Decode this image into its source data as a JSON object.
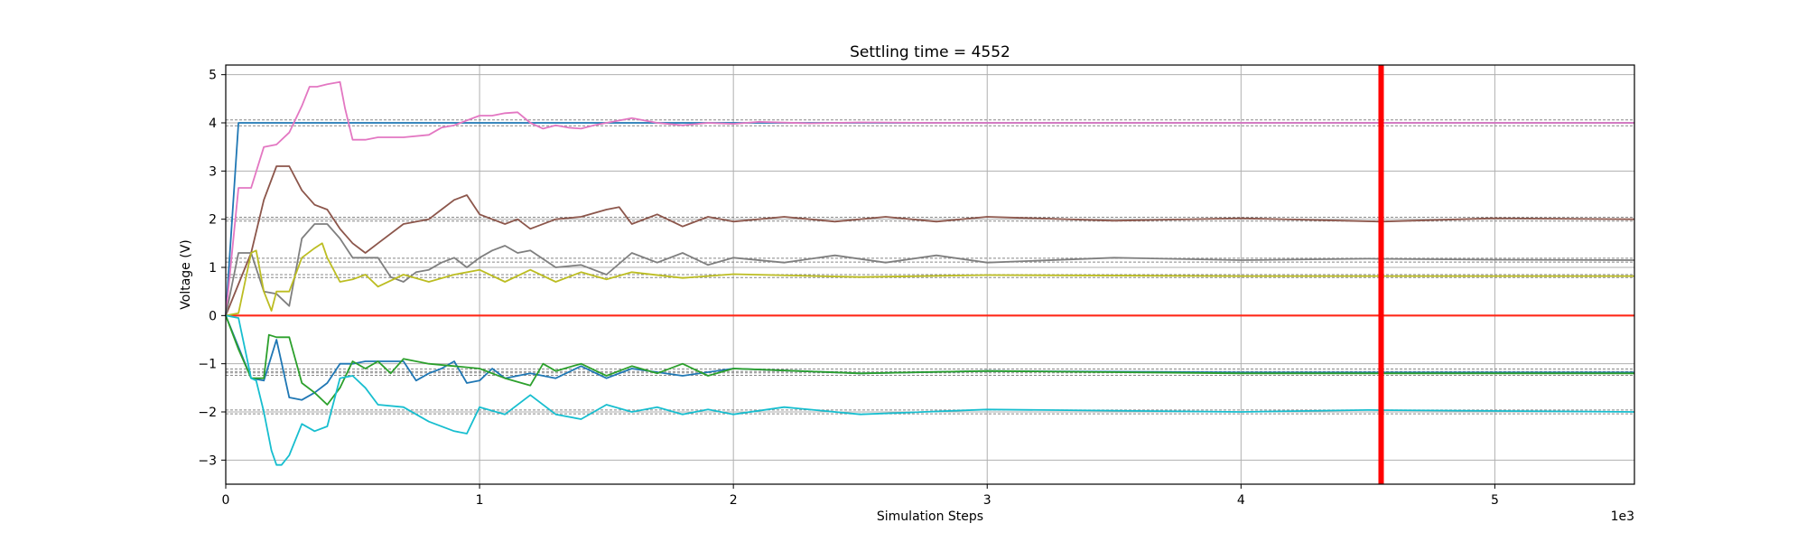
{
  "chart_data": {
    "type": "line",
    "title": "Settling time = 4552",
    "xlabel": "Simulation Steps",
    "ylabel": "Voltage (V)",
    "x_offset_text": "1e3",
    "xlim": [
      0,
      5.55
    ],
    "ylim": [
      -3.5,
      5.2
    ],
    "xticks": [
      0,
      1,
      2,
      3,
      4,
      5
    ],
    "yticks": [
      -3,
      -2,
      -1,
      0,
      1,
      2,
      3,
      4,
      5
    ],
    "grid": true,
    "settling_time": 4.552,
    "zero_line": 0,
    "targets": [
      {
        "value": 4.0,
        "tolerance": 0.06
      },
      {
        "value": 2.0,
        "tolerance": 0.04
      },
      {
        "value": 1.15,
        "tolerance": 0.04
      },
      {
        "value": 0.82,
        "tolerance": 0.03
      },
      {
        "value": -1.15,
        "tolerance": 0.04
      },
      {
        "value": -1.2,
        "tolerance": 0.04
      },
      {
        "value": -2.0,
        "tolerance": 0.04
      }
    ],
    "series": [
      {
        "color": "#1f77b4",
        "x": [
          0,
          0.05,
          5.55
        ],
        "y": [
          0,
          4.0,
          4.0
        ]
      },
      {
        "color": "#e377c2",
        "x": [
          0,
          0.05,
          0.1,
          0.15,
          0.2,
          0.25,
          0.3,
          0.33,
          0.36,
          0.4,
          0.45,
          0.47,
          0.5,
          0.55,
          0.6,
          0.7,
          0.8,
          0.85,
          0.9,
          0.95,
          1.0,
          1.05,
          1.1,
          1.15,
          1.2,
          1.25,
          1.3,
          1.35,
          1.4,
          1.45,
          1.5,
          1.6,
          1.7,
          1.8,
          1.9,
          2.0,
          2.1,
          2.3,
          2.5,
          2.8,
          3.0,
          5.55
        ],
        "y": [
          0,
          2.65,
          2.65,
          3.5,
          3.55,
          3.8,
          4.35,
          4.75,
          4.75,
          4.8,
          4.85,
          4.3,
          3.65,
          3.65,
          3.7,
          3.7,
          3.75,
          3.9,
          3.95,
          4.05,
          4.15,
          4.15,
          4.2,
          4.22,
          4.0,
          3.88,
          3.95,
          3.9,
          3.88,
          3.95,
          4.0,
          4.1,
          4.0,
          3.95,
          4.0,
          3.98,
          4.02,
          3.99,
          4.01,
          4.0,
          4.0,
          4.0
        ]
      },
      {
        "color": "#8c564b",
        "x": [
          0,
          0.1,
          0.15,
          0.2,
          0.25,
          0.3,
          0.35,
          0.4,
          0.45,
          0.5,
          0.55,
          0.6,
          0.7,
          0.8,
          0.85,
          0.9,
          0.95,
          1.0,
          1.05,
          1.1,
          1.15,
          1.2,
          1.3,
          1.4,
          1.5,
          1.55,
          1.6,
          1.7,
          1.8,
          1.9,
          2.0,
          2.2,
          2.4,
          2.6,
          2.8,
          3.0,
          3.5,
          4.0,
          4.55,
          5.0,
          5.55
        ],
        "y": [
          0,
          1.3,
          2.4,
          3.1,
          3.1,
          2.6,
          2.3,
          2.2,
          1.8,
          1.5,
          1.3,
          1.5,
          1.9,
          2.0,
          2.2,
          2.4,
          2.5,
          2.1,
          2.0,
          1.9,
          2.0,
          1.8,
          2.0,
          2.05,
          2.2,
          2.25,
          1.9,
          2.1,
          1.85,
          2.05,
          1.95,
          2.05,
          1.95,
          2.05,
          1.95,
          2.05,
          1.97,
          2.02,
          1.95,
          2.02,
          2.0
        ]
      },
      {
        "color": "#7f7f7f",
        "x": [
          0,
          0.05,
          0.1,
          0.15,
          0.2,
          0.25,
          0.3,
          0.35,
          0.4,
          0.45,
          0.5,
          0.55,
          0.6,
          0.65,
          0.7,
          0.75,
          0.8,
          0.85,
          0.9,
          0.95,
          1.0,
          1.05,
          1.1,
          1.15,
          1.2,
          1.3,
          1.4,
          1.5,
          1.6,
          1.7,
          1.8,
          1.9,
          2.0,
          2.2,
          2.4,
          2.6,
          2.8,
          3.0,
          3.5,
          4.0,
          4.5,
          5.0,
          5.55
        ],
        "y": [
          0,
          1.3,
          1.3,
          0.5,
          0.45,
          0.2,
          1.6,
          1.9,
          1.9,
          1.6,
          1.2,
          1.2,
          1.2,
          0.8,
          0.7,
          0.9,
          0.95,
          1.1,
          1.2,
          1.0,
          1.2,
          1.35,
          1.45,
          1.3,
          1.35,
          1.0,
          1.05,
          0.85,
          1.3,
          1.1,
          1.3,
          1.05,
          1.2,
          1.1,
          1.25,
          1.1,
          1.25,
          1.1,
          1.2,
          1.15,
          1.18,
          1.16,
          1.15
        ]
      },
      {
        "color": "#bcbd22",
        "x": [
          0,
          0.05,
          0.1,
          0.12,
          0.15,
          0.18,
          0.2,
          0.25,
          0.3,
          0.35,
          0.38,
          0.4,
          0.45,
          0.5,
          0.55,
          0.6,
          0.7,
          0.8,
          0.9,
          1.0,
          1.1,
          1.2,
          1.3,
          1.4,
          1.5,
          1.6,
          1.8,
          2.0,
          2.5,
          3.0,
          4.0,
          5.55
        ],
        "y": [
          0,
          0.05,
          1.3,
          1.35,
          0.5,
          0.1,
          0.5,
          0.5,
          1.2,
          1.4,
          1.5,
          1.2,
          0.7,
          0.75,
          0.85,
          0.6,
          0.85,
          0.7,
          0.85,
          0.95,
          0.7,
          0.95,
          0.7,
          0.9,
          0.75,
          0.9,
          0.78,
          0.86,
          0.8,
          0.84,
          0.82,
          0.82
        ]
      },
      {
        "color": "#1f77b4",
        "x": [
          0,
          0.1,
          0.15,
          0.2,
          0.25,
          0.3,
          0.35,
          0.4,
          0.45,
          0.5,
          0.55,
          0.6,
          0.7,
          0.75,
          0.8,
          0.85,
          0.9,
          0.95,
          1.0,
          1.05,
          1.1,
          1.2,
          1.3,
          1.4,
          1.5,
          1.6,
          1.8,
          2.0,
          2.5,
          3.0,
          4.0,
          5.55
        ],
        "y": [
          0,
          -1.3,
          -1.35,
          -0.5,
          -1.7,
          -1.75,
          -1.6,
          -1.4,
          -1.0,
          -1.0,
          -0.95,
          -0.95,
          -0.95,
          -1.35,
          -1.2,
          -1.1,
          -0.95,
          -1.4,
          -1.35,
          -1.1,
          -1.3,
          -1.2,
          -1.3,
          -1.05,
          -1.3,
          -1.1,
          -1.25,
          -1.1,
          -1.2,
          -1.15,
          -1.18,
          -1.18
        ]
      },
      {
        "color": "#2ca02c",
        "x": [
          0,
          0.05,
          0.1,
          0.15,
          0.17,
          0.2,
          0.25,
          0.3,
          0.35,
          0.4,
          0.45,
          0.5,
          0.55,
          0.6,
          0.65,
          0.7,
          0.8,
          0.9,
          1.0,
          1.1,
          1.2,
          1.25,
          1.3,
          1.4,
          1.5,
          1.6,
          1.7,
          1.8,
          1.9,
          2.0,
          2.5,
          3.0,
          4.0,
          5.55
        ],
        "y": [
          0,
          -0.7,
          -1.3,
          -1.3,
          -0.4,
          -0.45,
          -0.45,
          -1.4,
          -1.6,
          -1.85,
          -1.5,
          -0.95,
          -1.1,
          -0.95,
          -1.2,
          -0.9,
          -1.0,
          -1.05,
          -1.1,
          -1.3,
          -1.45,
          -1.0,
          -1.15,
          -1.0,
          -1.25,
          -1.05,
          -1.2,
          -1.0,
          -1.25,
          -1.1,
          -1.2,
          -1.15,
          -1.2,
          -1.2
        ]
      },
      {
        "color": "#17becf",
        "x": [
          0,
          0.05,
          0.1,
          0.12,
          0.15,
          0.18,
          0.2,
          0.22,
          0.25,
          0.3,
          0.35,
          0.4,
          0.45,
          0.5,
          0.55,
          0.6,
          0.7,
          0.8,
          0.9,
          0.95,
          1.0,
          1.1,
          1.2,
          1.3,
          1.4,
          1.5,
          1.6,
          1.7,
          1.8,
          1.9,
          2.0,
          2.2,
          2.5,
          3.0,
          4.0,
          4.5,
          5.55
        ],
        "y": [
          0,
          -0.05,
          -1.3,
          -1.35,
          -2.0,
          -2.8,
          -3.1,
          -3.1,
          -2.9,
          -2.25,
          -2.4,
          -2.3,
          -1.3,
          -1.25,
          -1.5,
          -1.85,
          -1.9,
          -2.2,
          -2.4,
          -2.45,
          -1.9,
          -2.05,
          -1.65,
          -2.05,
          -2.15,
          -1.85,
          -2.0,
          -1.9,
          -2.05,
          -1.95,
          -2.05,
          -1.9,
          -2.05,
          -1.95,
          -2.0,
          -1.96,
          -2.0
        ]
      }
    ]
  }
}
